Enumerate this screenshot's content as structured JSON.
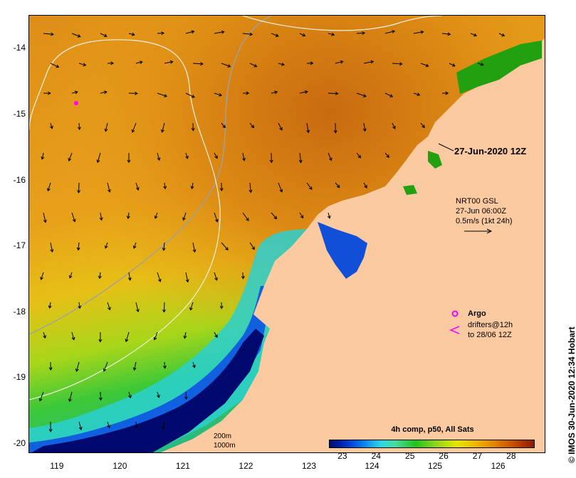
{
  "map": {
    "timestamp": "27-Jun-2020 12Z",
    "lat_labels": [
      "-14",
      "-15",
      "-16",
      "-17",
      "-18",
      "-19",
      "-20"
    ],
    "lon_labels": [
      "119",
      "120",
      "121",
      "122",
      "123",
      "124",
      "125",
      "126"
    ],
    "lat_range": [
      -20.15,
      -13.5
    ],
    "lon_range": [
      118.55,
      126.75
    ],
    "land_color": "#fccaa0",
    "ocean_warm_color": "#e8911a",
    "ocean_cool_color": "#000a6e"
  },
  "current_legend": {
    "line1": "NRT00 GSL",
    "line2": "27-Jun 06:00Z",
    "line3": "0.5m/s (1kt 24h)"
  },
  "argo_legend": {
    "label": "Argo",
    "line1": "drifters@12h",
    "line2": "to 28/06 12Z",
    "argo_color": "#ff00ff"
  },
  "scale_bar": {
    "isobath1": "200m",
    "isobath2": "1000m"
  },
  "colorbar": {
    "title": "4h comp, p50, All Sats",
    "ticks": [
      "23",
      "24",
      "25",
      "26",
      "27",
      "28"
    ],
    "range": [
      22.6,
      28.7
    ]
  },
  "credit": "IMOS 30-Jun-2020 12:34 Hobart"
}
